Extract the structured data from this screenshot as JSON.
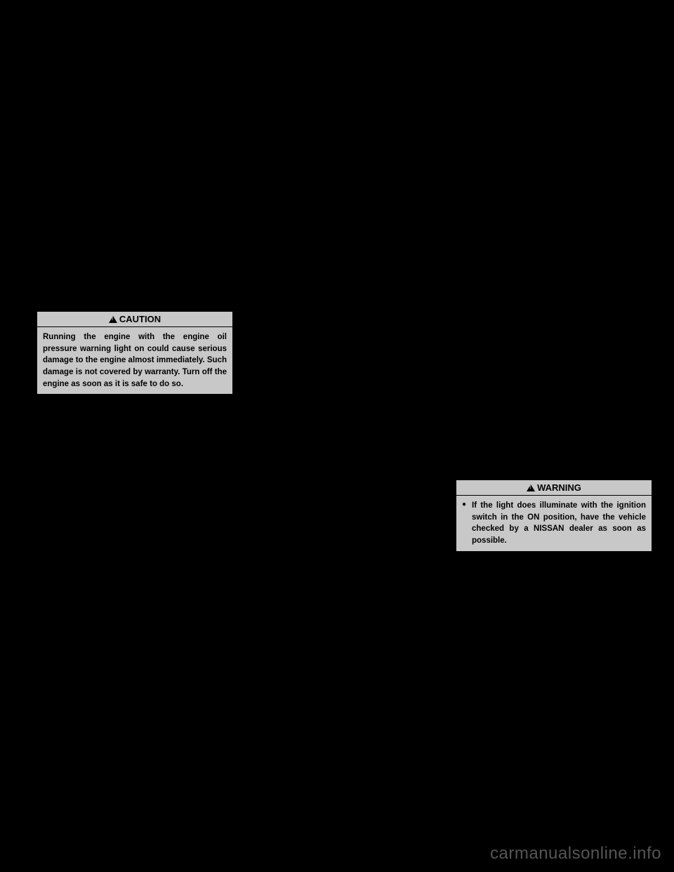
{
  "caution": {
    "header": "CAUTION",
    "body": "Running the engine with the engine oil pressure warning light on could cause serious damage to the engine almost immediately. Such damage is not covered by warranty. Turn off the engine as soon as it is safe to do so."
  },
  "warning": {
    "header": "WARNING",
    "item1": "If the light does illuminate with the ignition switch in the ON position, have the vehicle checked by a NISSAN dealer as soon as possible."
  },
  "watermark": "carmanualsonline.info",
  "colors": {
    "background": "#000000",
    "box_background": "#c8c8c8",
    "text": "#000000",
    "watermark": "#555555"
  }
}
